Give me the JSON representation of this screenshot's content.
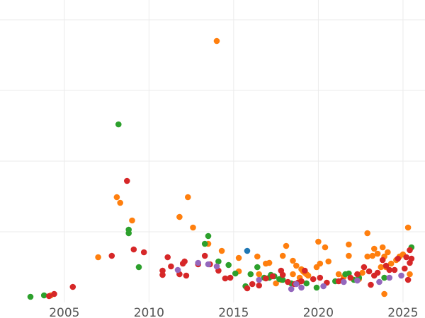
{
  "chart_data": {
    "type": "scatter",
    "title": "",
    "xlabel": "",
    "ylabel": "",
    "xlim": [
      2001.2,
      2026.3
    ],
    "ylim": [
      0,
      46
    ],
    "x_ticks": [
      2005,
      2010,
      2015,
      2020,
      2025
    ],
    "x_tick_labels": [
      "2005",
      "2010",
      "2015",
      "2020",
      "2025"
    ],
    "y_gridlines": [
      10,
      20,
      30,
      40
    ],
    "grid": true,
    "legend": "none",
    "series": [
      {
        "color": "#ff7f0e",
        "points": [
          [
            2004.2,
            1.0
          ],
          [
            2007.0,
            6.4
          ],
          [
            2008.1,
            14.9
          ],
          [
            2008.3,
            14.1
          ],
          [
            2009.0,
            11.6
          ],
          [
            2011.8,
            12.1
          ],
          [
            2012.3,
            14.9
          ],
          [
            2012.6,
            10.6
          ],
          [
            2013.5,
            8.3
          ],
          [
            2014.0,
            37.0
          ],
          [
            2014.3,
            7.3
          ],
          [
            2015.3,
            6.3
          ],
          [
            2015.3,
            4.4
          ],
          [
            2016.4,
            6.5
          ],
          [
            2016.5,
            4.0
          ],
          [
            2016.9,
            5.5
          ],
          [
            2017.1,
            5.6
          ],
          [
            2017.5,
            2.7
          ],
          [
            2017.8,
            3.2
          ],
          [
            2017.9,
            6.6
          ],
          [
            2018.1,
            8.0
          ],
          [
            2018.5,
            5.9
          ],
          [
            2018.5,
            4.0
          ],
          [
            2018.7,
            5.2
          ],
          [
            2018.9,
            3.5
          ],
          [
            2019.0,
            4.7
          ],
          [
            2019.1,
            4.4
          ],
          [
            2019.2,
            4.2
          ],
          [
            2019.3,
            4.0
          ],
          [
            2019.4,
            3.8
          ],
          [
            2019.9,
            5.0
          ],
          [
            2020.0,
            8.6
          ],
          [
            2020.1,
            5.5
          ],
          [
            2020.4,
            7.8
          ],
          [
            2020.6,
            5.8
          ],
          [
            2021.2,
            4.0
          ],
          [
            2021.5,
            3.6
          ],
          [
            2021.8,
            8.2
          ],
          [
            2021.8,
            6.6
          ],
          [
            2022.4,
            3.3
          ],
          [
            2022.6,
            4.2
          ],
          [
            2022.9,
            9.8
          ],
          [
            2022.9,
            6.5
          ],
          [
            2023.2,
            6.6
          ],
          [
            2023.3,
            7.6
          ],
          [
            2023.5,
            6.9
          ],
          [
            2023.7,
            5.0
          ],
          [
            2023.8,
            7.8
          ],
          [
            2023.9,
            6.5
          ],
          [
            2023.9,
            1.2
          ],
          [
            2024.0,
            5.0
          ],
          [
            2024.1,
            7.1
          ],
          [
            2024.3,
            5.5
          ],
          [
            2024.6,
            6.0
          ],
          [
            2024.8,
            6.5
          ],
          [
            2025.3,
            10.6
          ],
          [
            2025.0,
            6.8
          ],
          [
            2025.4,
            4.0
          ]
        ]
      },
      {
        "color": "#2ca02c",
        "points": [
          [
            2003.0,
            0.8
          ],
          [
            2003.8,
            1.0
          ],
          [
            2008.2,
            25.2
          ],
          [
            2008.8,
            10.3
          ],
          [
            2008.8,
            9.8
          ],
          [
            2009.4,
            5.0
          ],
          [
            2013.3,
            8.3
          ],
          [
            2013.5,
            9.4
          ],
          [
            2014.1,
            5.8
          ],
          [
            2014.7,
            5.3
          ],
          [
            2015.1,
            4.1
          ],
          [
            2015.7,
            2.3
          ],
          [
            2016.0,
            4.0
          ],
          [
            2016.4,
            5.0
          ],
          [
            2016.8,
            3.5
          ],
          [
            2017.1,
            3.5
          ],
          [
            2017.2,
            3.9
          ],
          [
            2017.4,
            3.7
          ],
          [
            2017.7,
            3.3
          ],
          [
            2017.9,
            3.2
          ],
          [
            2018.4,
            2.7
          ],
          [
            2019.3,
            2.7
          ],
          [
            2019.9,
            2.1
          ],
          [
            2021.0,
            3.0
          ],
          [
            2021.6,
            4.0
          ],
          [
            2021.8,
            4.1
          ],
          [
            2022.1,
            3.2
          ],
          [
            2022.4,
            3.5
          ],
          [
            2023.9,
            3.5
          ],
          [
            2025.5,
            7.8
          ]
        ]
      },
      {
        "color": "#1f77b4",
        "points": [
          [
            2015.8,
            7.3
          ]
        ]
      },
      {
        "color": "#d62728",
        "points": [
          [
            2004.1,
            0.9
          ],
          [
            2004.4,
            1.2
          ],
          [
            2005.5,
            2.2
          ],
          [
            2007.8,
            6.6
          ],
          [
            2008.7,
            17.2
          ],
          [
            2009.1,
            7.5
          ],
          [
            2009.7,
            7.1
          ],
          [
            2010.8,
            4.5
          ],
          [
            2010.8,
            3.9
          ],
          [
            2011.1,
            6.4
          ],
          [
            2011.3,
            5.1
          ],
          [
            2011.8,
            4.0
          ],
          [
            2012.0,
            5.5
          ],
          [
            2012.1,
            5.8
          ],
          [
            2012.2,
            3.8
          ],
          [
            2012.9,
            5.4
          ],
          [
            2013.3,
            6.6
          ],
          [
            2013.6,
            5.4
          ],
          [
            2014.1,
            4.5
          ],
          [
            2014.5,
            3.4
          ],
          [
            2014.8,
            3.5
          ],
          [
            2015.8,
            2.0
          ],
          [
            2016.1,
            2.6
          ],
          [
            2016.5,
            2.4
          ],
          [
            2016.9,
            3.4
          ],
          [
            2017.3,
            3.7
          ],
          [
            2017.8,
            4.5
          ],
          [
            2017.9,
            3.9
          ],
          [
            2018.2,
            2.9
          ],
          [
            2018.6,
            2.6
          ],
          [
            2018.8,
            2.8
          ],
          [
            2019.0,
            3.0
          ],
          [
            2019.2,
            4.5
          ],
          [
            2019.7,
            3.3
          ],
          [
            2020.1,
            3.5
          ],
          [
            2020.5,
            2.8
          ],
          [
            2021.2,
            3.0
          ],
          [
            2021.4,
            3.1
          ],
          [
            2021.9,
            3.5
          ],
          [
            2022.3,
            4.0
          ],
          [
            2022.7,
            5.0
          ],
          [
            2023.0,
            4.4
          ],
          [
            2023.1,
            2.5
          ],
          [
            2023.3,
            3.8
          ],
          [
            2023.5,
            4.2
          ],
          [
            2023.8,
            6.0
          ],
          [
            2024.0,
            5.2
          ],
          [
            2024.2,
            4.6
          ],
          [
            2024.5,
            4.6
          ],
          [
            2024.7,
            6.2
          ],
          [
            2025.1,
            4.8
          ],
          [
            2025.2,
            6.4
          ],
          [
            2025.4,
            7.4
          ],
          [
            2025.5,
            6.2
          ],
          [
            2025.4,
            5.6
          ],
          [
            2025.3,
            3.2
          ]
        ]
      },
      {
        "color": "#9467bd",
        "points": [
          [
            2011.7,
            4.6
          ],
          [
            2012.9,
            5.6
          ],
          [
            2013.5,
            5.4
          ],
          [
            2014.0,
            5.1
          ],
          [
            2016.5,
            3.2
          ],
          [
            2018.4,
            1.9
          ],
          [
            2018.7,
            2.6
          ],
          [
            2019.0,
            2.1
          ],
          [
            2020.3,
            2.3
          ],
          [
            2021.5,
            2.9
          ],
          [
            2022.3,
            3.1
          ],
          [
            2023.6,
            2.9
          ],
          [
            2024.2,
            3.5
          ],
          [
            2024.9,
            3.8
          ]
        ]
      }
    ]
  }
}
